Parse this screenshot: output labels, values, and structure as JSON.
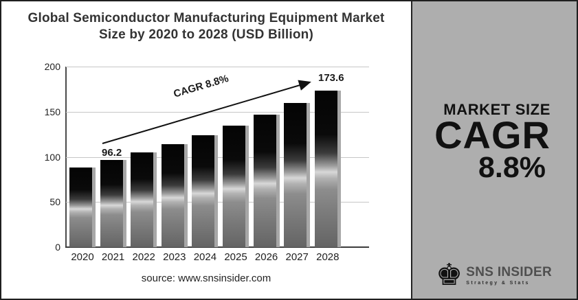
{
  "title_line1": "Global Semiconductor Manufacturing Equipment Market",
  "title_line2": "Size by 2020 to 2028 (USD Billion)",
  "source_text": "source: www.snsinsider.com",
  "chart_data": {
    "type": "bar",
    "title": "Global Semiconductor Manufacturing Equipment Market Size by 2020 to 2028 (USD Billion)",
    "categories": [
      "2020",
      "2021",
      "2022",
      "2023",
      "2024",
      "2025",
      "2026",
      "2027",
      "2028"
    ],
    "values": [
      88.4,
      96.2,
      104.7,
      113.9,
      123.9,
      134.8,
      146.6,
      159.6,
      173.6
    ],
    "xlabel": "",
    "ylabel": "",
    "ylim": [
      0,
      200
    ],
    "yticks": [
      0,
      50,
      100,
      150,
      200
    ],
    "grid": true,
    "legend": false,
    "annotations": {
      "start_value_label": "96.2",
      "end_value_label": "173.6",
      "trend_label": "CAGR 8.8%"
    }
  },
  "side_panel": {
    "market_size_label": "MARKET SIZE",
    "cagr_label": "CAGR",
    "cagr_value": "8.8%",
    "logo": {
      "icon": "chess-king-icon",
      "icon_glyph": "♚",
      "name": "SNS INSIDER",
      "tagline": "Strategy & Stats"
    }
  },
  "colors": {
    "panel_bg": "#aeaeae",
    "bar_top": "#040404",
    "bar_highlight": "#d8d8d8",
    "bar_side": "#a7a7a7",
    "gridline": "#c6c6c6"
  }
}
